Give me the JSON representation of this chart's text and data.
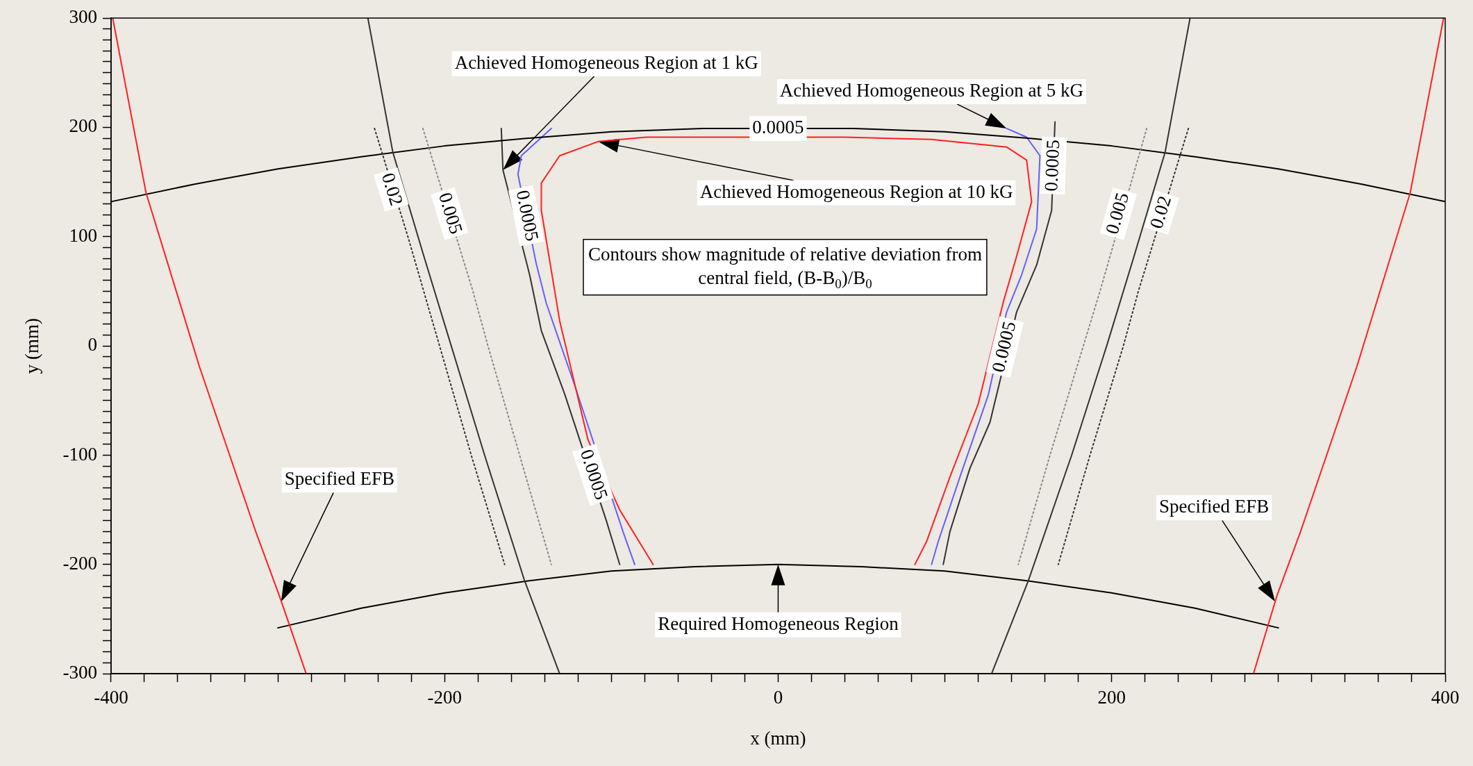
{
  "chart_data": {
    "type": "line",
    "xlabel": "x (mm)",
    "ylabel": "y (mm)",
    "xlim": [
      -400,
      400
    ],
    "ylim": [
      -300,
      300
    ],
    "xticks": [
      -400,
      {
        "value": -380,
        "label": null
      },
      {
        "value": -360,
        "label": null
      },
      {
        "value": -340,
        "label": null
      },
      {
        "value": -320,
        "label": null
      },
      {
        "value": -300,
        "label": null
      },
      {
        "value": -280,
        "label": null
      },
      {
        "value": -260,
        "label": null
      },
      {
        "value": -240,
        "label": null
      },
      {
        "value": -220,
        "label": null
      },
      -200,
      {
        "value": -180,
        "label": null
      },
      {
        "value": -160,
        "label": null
      },
      {
        "value": -140,
        "label": null
      },
      {
        "value": -120,
        "label": null
      },
      {
        "value": -100,
        "label": null
      },
      {
        "value": -80,
        "label": null
      },
      {
        "value": -60,
        "label": null
      },
      {
        "value": -40,
        "label": null
      },
      {
        "value": -20,
        "label": null
      },
      0,
      {
        "value": 20,
        "label": null
      },
      {
        "value": 40,
        "label": null
      },
      {
        "value": 60,
        "label": null
      },
      {
        "value": 80,
        "label": null
      },
      {
        "value": 100,
        "label": null
      },
      {
        "value": 120,
        "label": null
      },
      {
        "value": 140,
        "label": null
      },
      {
        "value": 160,
        "label": null
      },
      {
        "value": 180,
        "label": null
      },
      200,
      {
        "value": 220,
        "label": null
      },
      {
        "value": 240,
        "label": null
      },
      {
        "value": 260,
        "label": null
      },
      {
        "value": 280,
        "label": null
      },
      {
        "value": 300,
        "label": null
      },
      {
        "value": 320,
        "label": null
      },
      {
        "value": 340,
        "label": null
      },
      {
        "value": 360,
        "label": null
      },
      {
        "value": 380,
        "label": null
      },
      400
    ],
    "yticks": [
      -300,
      {
        "value": -290,
        "label": null
      },
      {
        "value": -280,
        "label": null
      },
      {
        "value": -270,
        "label": null
      },
      {
        "value": -260,
        "label": null
      },
      {
        "value": -250,
        "label": null
      },
      {
        "value": -240,
        "label": null
      },
      {
        "value": -230,
        "label": null
      },
      {
        "value": -220,
        "label": null
      },
      {
        "value": -210,
        "label": null
      },
      -200,
      {
        "value": -190,
        "label": null
      },
      {
        "value": -180,
        "label": null
      },
      {
        "value": -170,
        "label": null
      },
      {
        "value": -160,
        "label": null
      },
      {
        "value": -150,
        "label": null
      },
      {
        "value": -140,
        "label": null
      },
      {
        "value": -130,
        "label": null
      },
      {
        "value": -120,
        "label": null
      },
      {
        "value": -110,
        "label": null
      },
      -100,
      {
        "value": -90,
        "label": null
      },
      {
        "value": -80,
        "label": null
      },
      {
        "value": -70,
        "label": null
      },
      {
        "value": -60,
        "label": null
      },
      {
        "value": -50,
        "label": null
      },
      {
        "value": -40,
        "label": null
      },
      {
        "value": -30,
        "label": null
      },
      {
        "value": -20,
        "label": null
      },
      {
        "value": -10,
        "label": null
      },
      0,
      {
        "value": 10,
        "label": null
      },
      {
        "value": 20,
        "label": null
      },
      {
        "value": 30,
        "label": null
      },
      {
        "value": 40,
        "label": null
      },
      {
        "value": 50,
        "label": null
      },
      {
        "value": 60,
        "label": null
      },
      {
        "value": 70,
        "label": null
      },
      {
        "value": 80,
        "label": null
      },
      {
        "value": 90,
        "label": null
      },
      100,
      {
        "value": 110,
        "label": null
      },
      {
        "value": 120,
        "label": null
      },
      {
        "value": 130,
        "label": null
      },
      {
        "value": 140,
        "label": null
      },
      {
        "value": 150,
        "label": null
      },
      {
        "value": 160,
        "label": null
      },
      {
        "value": 170,
        "label": null
      },
      {
        "value": 180,
        "label": null
      },
      {
        "value": 190,
        "label": null
      },
      200,
      {
        "value": 210,
        "label": null
      },
      {
        "value": 220,
        "label": null
      },
      {
        "value": 230,
        "label": null
      },
      {
        "value": 240,
        "label": null
      },
      {
        "value": 250,
        "label": null
      },
      {
        "value": 260,
        "label": null
      },
      {
        "value": 270,
        "label": null
      },
      {
        "value": 280,
        "label": null
      },
      {
        "value": 290,
        "label": null
      },
      300
    ],
    "marker": "none",
    "series": [
      {
        "color": "#ff2020",
        "x": [
          -399,
          -379,
          -347,
          -313,
          -299,
          -283
        ],
        "values": [
          300,
          140,
          -19,
          -171,
          -229,
          -300
        ]
      },
      {
        "color": "#ff2020",
        "x": [
          399,
          379,
          347,
          313,
          299,
          285
        ],
        "values": [
          300,
          140,
          -19,
          -171,
          -229,
          -300
        ]
      },
      {
        "color": "#333333",
        "x": [
          -246,
          -231,
          -212,
          -196,
          -176,
          -152,
          -131
        ],
        "values": [
          300,
          177,
          80,
          0,
          -100,
          -215,
          -300
        ]
      },
      {
        "color": "#333333",
        "x": [
          247,
          232,
          213,
          197,
          176,
          150,
          128
        ],
        "values": [
          300,
          177,
          80,
          0,
          -100,
          -215,
          -300
        ]
      },
      {
        "color": "#333333",
        "line_style": "dotted",
        "x": [
          -242,
          -222,
          -203,
          -184,
          -164
        ],
        "values": [
          199,
          100,
          0,
          -100,
          -200
        ]
      },
      {
        "color": "#333333",
        "line_style": "dotted",
        "x": [
          246,
          216,
          207,
          187,
          168
        ],
        "values": [
          199,
          50,
          0,
          -100,
          -200
        ]
      },
      {
        "color": "#888888",
        "line_style": "dotted",
        "x": [
          -213,
          -183,
          -174,
          -155,
          -136
        ],
        "values": [
          199,
          50,
          0,
          -100,
          -200
        ]
      },
      {
        "color": "#888888",
        "line_style": "dotted",
        "x": [
          221,
          193,
          183,
          163,
          144
        ],
        "values": [
          199,
          50,
          0,
          -100,
          -200
        ]
      },
      {
        "color": "#000000",
        "x": [
          -400,
          -350,
          -300,
          -250,
          -200,
          -150,
          -100,
          -45,
          45,
          100,
          150,
          200,
          250,
          300,
          350,
          400
        ],
        "values": [
          132,
          148,
          162,
          173,
          183,
          190,
          196,
          199,
          199,
          196,
          190,
          183,
          173,
          162,
          148,
          132
        ]
      },
      {
        "color": "#000000",
        "x": [
          -300,
          -250,
          -200,
          -150,
          -100,
          -50,
          0,
          50,
          100,
          150,
          200,
          250,
          300
        ],
        "values": [
          -258,
          -240,
          -226,
          -215,
          -206,
          -202,
          -200,
          -202,
          -206,
          -215,
          -226,
          -240,
          -258
        ]
      },
      {
        "color": "#ff2020",
        "x": [
          -75,
          -95,
          -114,
          -131,
          -142,
          -142,
          -131,
          -108,
          -79,
          40,
          92,
          137,
          149,
          152,
          143,
          135,
          120,
          103,
          89,
          82
        ],
        "values": [
          -200,
          -150,
          -86,
          23,
          124,
          149,
          174,
          187,
          191,
          191,
          189,
          182,
          170,
          132,
          82,
          40,
          -53,
          -120,
          -179,
          -200
        ]
      },
      {
        "color": "#6060ff",
        "x": [
          -86,
          -93,
          -122,
          -139,
          -145,
          -156,
          -154,
          -136
        ],
        "values": [
          -200,
          -170,
          -36,
          39,
          75,
          157,
          174,
          199
        ]
      },
      {
        "color": "#6060ff",
        "x": [
          137,
          149,
          157,
          155,
          146,
          137,
          126,
          109,
          96,
          92
        ],
        "values": [
          199,
          191,
          174,
          107,
          65,
          31,
          -45,
          -120,
          -179,
          -200
        ]
      },
      {
        "color": "#333333",
        "x": [
          -95,
          -103,
          -128,
          -142,
          -149,
          -165,
          -166
        ],
        "values": [
          -200,
          -160,
          -44,
          14,
          65,
          161,
          199
        ]
      },
      {
        "color": "#333333",
        "x": [
          166,
          164,
          155,
          143,
          127,
          115,
          103,
          99
        ],
        "values": [
          205,
          124,
          74,
          31,
          -70,
          -112,
          -170,
          -200
        ]
      }
    ],
    "annotations": [
      "Achieved Homogeneous Region at 1 kG",
      {
        "text": "Achieved Homogeneous Region at 5 kG",
        "x": 137,
        "y": 199
      },
      "Achieved Homogeneous Region at 10 kG",
      "Specified EFB",
      "Specified EFB",
      {
        "text": "Required Homogeneous Region",
        "x": 0,
        "y": -200
      },
      {
        "text": "0.02",
        "x": -232,
        "y": 143
      },
      {
        "text": "0.005",
        "x": -197,
        "y": 121
      },
      {
        "text": "0.0005",
        "x": -151,
        "y": 119
      },
      {
        "text": "0.0005",
        "x": 0,
        "y": 199
      },
      {
        "text": "0.0005",
        "x": 165,
        "y": 165
      },
      {
        "text": "0.005",
        "x": 204,
        "y": 121
      },
      {
        "text": "0.02",
        "x": 230,
        "y": 122
      },
      {
        "text": "0.0005",
        "x": 136,
        "y": -1
      },
      {
        "text": "0.0005",
        "x": -111,
        "y": -118
      },
      "Contours show magnitude of relative deviation from central field, (B-B$_{0}$)/B$_{0}$"
    ]
  }
}
